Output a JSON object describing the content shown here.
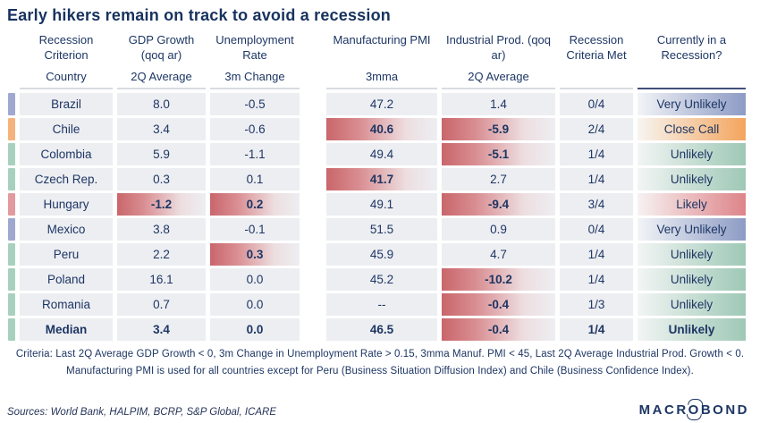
{
  "title": "Early hikers remain on track to avoid a recession",
  "colors": {
    "text_navy": "#1d3664",
    "cell_gray": "#edeef2",
    "highlight_red": "#c9666b",
    "tone_blue": "#9fa9cf",
    "tone_orange": "#f5b37b",
    "tone_green": "#a7d1be",
    "tone_red": "#e29a9e"
  },
  "table": {
    "column_groups": [
      {
        "label": "Recession Criterion",
        "sub": "Country"
      },
      {
        "label": "GDP Growth (qoq ar)",
        "sub": "2Q Average"
      },
      {
        "label": "Unemployment Rate",
        "sub": "3m Change"
      },
      {
        "label": "Manufacturing PMI",
        "sub": "3mma"
      },
      {
        "label": "Industrial Prod. (qoq ar)",
        "sub": "2Q Average"
      },
      {
        "label": "Recession Criteria Met",
        "sub": ""
      },
      {
        "label": "Currently in a Recession?",
        "sub": ""
      }
    ],
    "rows": [
      {
        "country": "Brazil",
        "gdp": "8.0",
        "unemp": "-0.5",
        "pmi": "47.2",
        "indprod": "1.4",
        "criteria": "0/4",
        "recession": "Very Unlikely",
        "tone": "blue",
        "highlights": [],
        "bold": false
      },
      {
        "country": "Chile",
        "gdp": "3.4",
        "unemp": "-0.6",
        "pmi": "40.6",
        "indprod": "-5.9",
        "criteria": "2/4",
        "recession": "Close Call",
        "tone": "orange",
        "highlights": [
          "pmi",
          "indprod"
        ],
        "bold": false
      },
      {
        "country": "Colombia",
        "gdp": "5.9",
        "unemp": "-1.1",
        "pmi": "49.4",
        "indprod": "-5.1",
        "criteria": "1/4",
        "recession": "Unlikely",
        "tone": "green",
        "highlights": [
          "indprod"
        ],
        "bold": false
      },
      {
        "country": "Czech Rep.",
        "gdp": "0.3",
        "unemp": "0.1",
        "pmi": "41.7",
        "indprod": "2.7",
        "criteria": "1/4",
        "recession": "Unlikely",
        "tone": "green",
        "highlights": [
          "pmi"
        ],
        "bold": false
      },
      {
        "country": "Hungary",
        "gdp": "-1.2",
        "unemp": "0.2",
        "pmi": "49.1",
        "indprod": "-9.4",
        "criteria": "3/4",
        "recession": "Likely",
        "tone": "red",
        "highlights": [
          "gdp",
          "unemp",
          "indprod"
        ],
        "bold": false
      },
      {
        "country": "Mexico",
        "gdp": "3.8",
        "unemp": "-0.1",
        "pmi": "51.5",
        "indprod": "0.9",
        "criteria": "0/4",
        "recession": "Very Unlikely",
        "tone": "blue",
        "highlights": [],
        "bold": false
      },
      {
        "country": "Peru",
        "gdp": "2.2",
        "unemp": "0.3",
        "pmi": "45.9",
        "indprod": "4.7",
        "criteria": "1/4",
        "recession": "Unlikely",
        "tone": "green",
        "highlights": [
          "unemp"
        ],
        "bold": false
      },
      {
        "country": "Poland",
        "gdp": "16.1",
        "unemp": "0.0",
        "pmi": "45.2",
        "indprod": "-10.2",
        "criteria": "1/4",
        "recession": "Unlikely",
        "tone": "green",
        "highlights": [
          "indprod"
        ],
        "bold": false
      },
      {
        "country": "Romania",
        "gdp": "0.7",
        "unemp": "0.0",
        "pmi": "--",
        "indprod": "-0.4",
        "criteria": "1/3",
        "recession": "Unlikely",
        "tone": "green",
        "highlights": [
          "indprod"
        ],
        "bold": false
      },
      {
        "country": "Median",
        "gdp": "3.4",
        "unemp": "0.0",
        "pmi": "46.5",
        "indprod": "-0.4",
        "criteria": "1/4",
        "recession": "Unlikely",
        "tone": "green",
        "highlights": [
          "indprod"
        ],
        "bold": true
      }
    ]
  },
  "footnotes": [
    "Criteria: Last 2Q Average GDP Growth < 0, 3m Change in Unemployment Rate > 0.15, 3mma Manuf. PMI < 45, Last 2Q Average Industrial Prod. Growth < 0.",
    "Manufacturing PMI is used for all countries except for Peru (Business Situation Diffusion Index) and Chile (Business Confidence Index)."
  ],
  "sources": "Sources: World Bank, HALPIM, BCRP, S&P Global, ICARE",
  "logo": {
    "part1": "MACR",
    "part2": "O",
    "part3": "BOND"
  },
  "chart_data": {
    "type": "table",
    "title": "Early hikers remain on track to avoid a recession",
    "columns": [
      "Country",
      "GDP Growth (qoq ar) 2Q Average",
      "Unemployment Rate 3m Change",
      "Manufacturing PMI 3mma",
      "Industrial Prod. (qoq ar) 2Q Average",
      "Recession Criteria Met",
      "Currently in a Recession?"
    ],
    "rows": [
      [
        "Brazil",
        "8.0",
        "-0.5",
        "47.2",
        "1.4",
        "0/4",
        "Very Unlikely"
      ],
      [
        "Chile",
        "3.4",
        "-0.6",
        "40.6",
        "-5.9",
        "2/4",
        "Close Call"
      ],
      [
        "Colombia",
        "5.9",
        "-1.1",
        "49.4",
        "-5.1",
        "1/4",
        "Unlikely"
      ],
      [
        "Czech Rep.",
        "0.3",
        "0.1",
        "41.7",
        "2.7",
        "1/4",
        "Unlikely"
      ],
      [
        "Hungary",
        "-1.2",
        "0.2",
        "49.1",
        "-9.4",
        "3/4",
        "Likely"
      ],
      [
        "Mexico",
        "3.8",
        "-0.1",
        "51.5",
        "0.9",
        "0/4",
        "Very Unlikely"
      ],
      [
        "Peru",
        "2.2",
        "0.3",
        "45.9",
        "4.7",
        "1/4",
        "Unlikely"
      ],
      [
        "Poland",
        "16.1",
        "0.0",
        "45.2",
        "-10.2",
        "1/4",
        "Unlikely"
      ],
      [
        "Romania",
        "0.7",
        "0.0",
        "--",
        "-0.4",
        "1/3",
        "Unlikely"
      ],
      [
        "Median",
        "3.4",
        "0.0",
        "46.5",
        "-0.4",
        "1/4",
        "Unlikely"
      ]
    ]
  }
}
